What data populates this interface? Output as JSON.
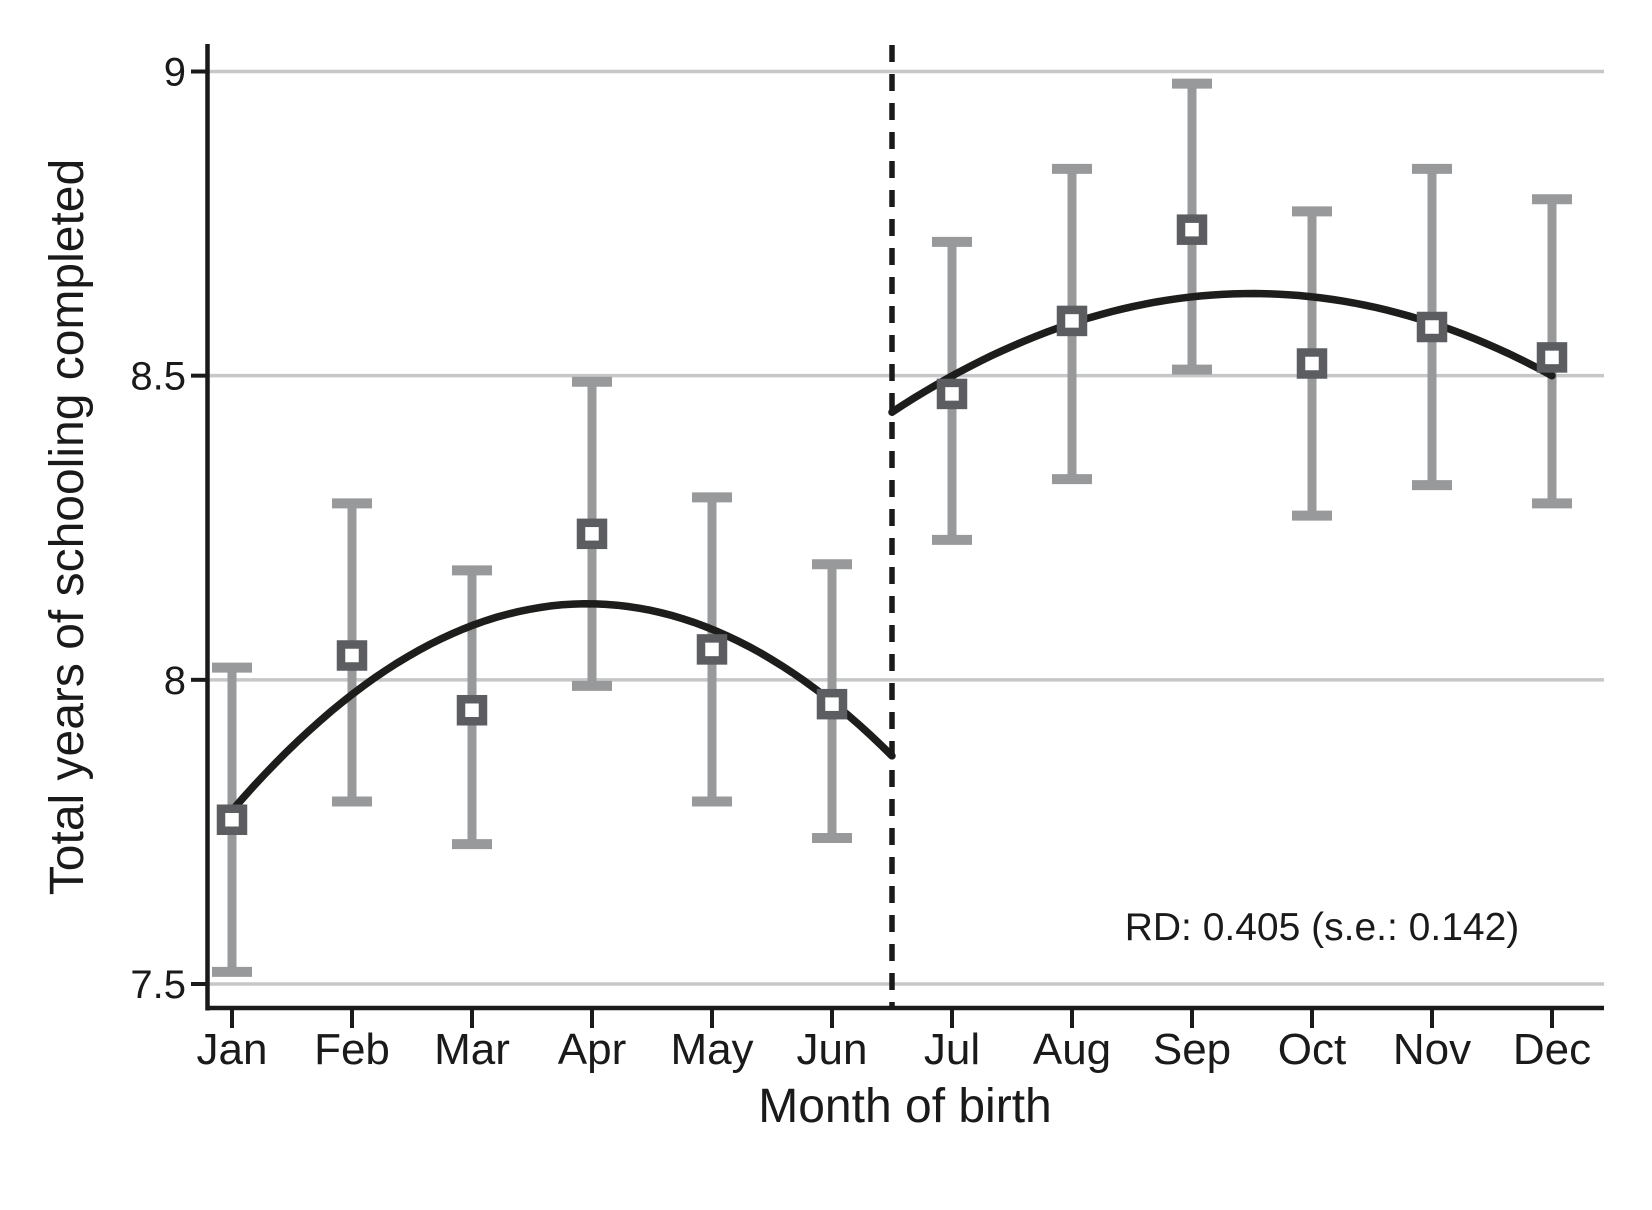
{
  "chart_data": {
    "type": "scatter",
    "xlabel": "Month of birth",
    "ylabel": "Total years of schooling completed",
    "annotation": "RD: 0.405 (s.e.: 0.142)",
    "categories": [
      "Jan",
      "Feb",
      "Mar",
      "Apr",
      "May",
      "Jun",
      "Jul",
      "Aug",
      "Sep",
      "Oct",
      "Nov",
      "Dec"
    ],
    "values": [
      7.77,
      8.04,
      7.95,
      8.24,
      8.05,
      7.96,
      8.47,
      8.59,
      8.74,
      8.52,
      8.58,
      8.53
    ],
    "ci_low": [
      7.52,
      7.8,
      7.73,
      7.99,
      7.8,
      7.74,
      8.23,
      8.33,
      8.51,
      8.27,
      8.32,
      8.29
    ],
    "ci_high": [
      8.02,
      8.29,
      8.18,
      8.49,
      8.3,
      8.19,
      8.72,
      8.84,
      8.98,
      8.77,
      8.84,
      8.79
    ],
    "fitted_curves": [
      {
        "name": "quadratic-fit-pre-cutoff",
        "x_months": [
          1.0,
          3.95,
          6.5
        ],
        "y": [
          7.785,
          8.125,
          7.875
        ]
      },
      {
        "name": "quadratic-fit-post-cutoff",
        "x_months": [
          6.5,
          9.5,
          12.0
        ],
        "y": [
          8.44,
          8.635,
          8.5
        ]
      }
    ],
    "cutoff_month": 6.5,
    "yticks": [
      "7.5",
      "8",
      "8.5",
      "9"
    ],
    "ytick_values": [
      7.5,
      8,
      8.5,
      9
    ],
    "ylim": [
      7.4,
      9.07
    ],
    "grid": "horizontal",
    "legend": "none",
    "colors": {
      "error_bar": "#97999b",
      "marker_stroke": "#5b5d60",
      "marker_fill": "#ffffff",
      "fit_line": "#1d1d1b",
      "gridline": "#c6c7c8",
      "axis": "#1a1a1a",
      "cutoff_line": "#1a1a1a",
      "text": "#1a1a1a"
    }
  }
}
